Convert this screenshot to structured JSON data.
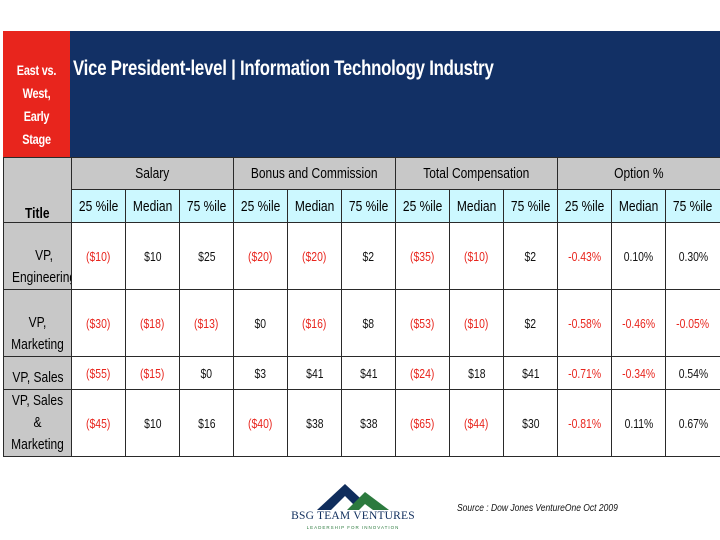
{
  "corner_label": "East vs. West,\nEarly Stage",
  "banner_title": "Vice President-level  |  Information Technology Industry",
  "title_header": "Title",
  "groups": [
    "Salary",
    "Bonus and Commission",
    "Total Compensation",
    "Option %"
  ],
  "subheaders": [
    "25 %ile",
    "Median",
    "75 %ile",
    "25 %ile",
    "Median",
    "75 %ile",
    "25 %ile",
    "Median",
    "75 %ile",
    "25 %ile",
    "Median",
    "75 %ile"
  ],
  "rows": [
    {
      "title": "VP, Engineering",
      "cells": [
        {
          "v": "($10)",
          "neg": true
        },
        {
          "v": "$10",
          "neg": false
        },
        {
          "v": "$25",
          "neg": false
        },
        {
          "v": "($20)",
          "neg": true
        },
        {
          "v": "($20)",
          "neg": true
        },
        {
          "v": "$2",
          "neg": false
        },
        {
          "v": "($35)",
          "neg": true
        },
        {
          "v": "($10)",
          "neg": true
        },
        {
          "v": "$2",
          "neg": false
        },
        {
          "v": "-0.43%",
          "neg": true
        },
        {
          "v": "0.10%",
          "neg": false
        },
        {
          "v": "0.30%",
          "neg": false
        }
      ]
    },
    {
      "title": "VP, Marketing",
      "cells": [
        {
          "v": "($30)",
          "neg": true
        },
        {
          "v": "($18)",
          "neg": true
        },
        {
          "v": "($13)",
          "neg": true
        },
        {
          "v": "$0",
          "neg": false
        },
        {
          "v": "($16)",
          "neg": true
        },
        {
          "v": "$8",
          "neg": false
        },
        {
          "v": "($53)",
          "neg": true
        },
        {
          "v": "($10)",
          "neg": true
        },
        {
          "v": "$2",
          "neg": false
        },
        {
          "v": "-0.58%",
          "neg": true
        },
        {
          "v": "-0.46%",
          "neg": true
        },
        {
          "v": "-0.05%",
          "neg": true
        }
      ]
    },
    {
      "title": "VP, Sales",
      "cells": [
        {
          "v": "($55)",
          "neg": true
        },
        {
          "v": "($15)",
          "neg": true
        },
        {
          "v": "$0",
          "neg": false
        },
        {
          "v": "$3",
          "neg": false
        },
        {
          "v": "$41",
          "neg": false
        },
        {
          "v": "$41",
          "neg": false
        },
        {
          "v": "($24)",
          "neg": true
        },
        {
          "v": "$18",
          "neg": false
        },
        {
          "v": "$41",
          "neg": false
        },
        {
          "v": "-0.71%",
          "neg": true
        },
        {
          "v": "-0.34%",
          "neg": true
        },
        {
          "v": "0.54%",
          "neg": false
        }
      ]
    },
    {
      "title": "VP, Sales &\nMarketing",
      "cells": [
        {
          "v": "($45)",
          "neg": true
        },
        {
          "v": "$10",
          "neg": false
        },
        {
          "v": "$16",
          "neg": false
        },
        {
          "v": "($40)",
          "neg": true
        },
        {
          "v": "$38",
          "neg": false
        },
        {
          "v": "$38",
          "neg": false
        },
        {
          "v": "($65)",
          "neg": true
        },
        {
          "v": "($44)",
          "neg": true
        },
        {
          "v": "$30",
          "neg": false
        },
        {
          "v": "-0.81%",
          "neg": true
        },
        {
          "v": "0.11%",
          "neg": false
        },
        {
          "v": "0.67%",
          "neg": false
        }
      ]
    }
  ],
  "logo": {
    "name": "BSG TEAM VENTURES",
    "tagline": "LEADERSHIP FOR INNOVATION",
    "icon": "mountain-logo-icon"
  },
  "source": "Source  :  Dow Jones VentureOne  Oct 2009",
  "colors": {
    "corner_red": "#e8251d",
    "banner_navy": "#123065",
    "header_gray": "#c8c8c8",
    "subheader_cyan": "#ccf8ff",
    "negative_red": "#e8251d"
  }
}
